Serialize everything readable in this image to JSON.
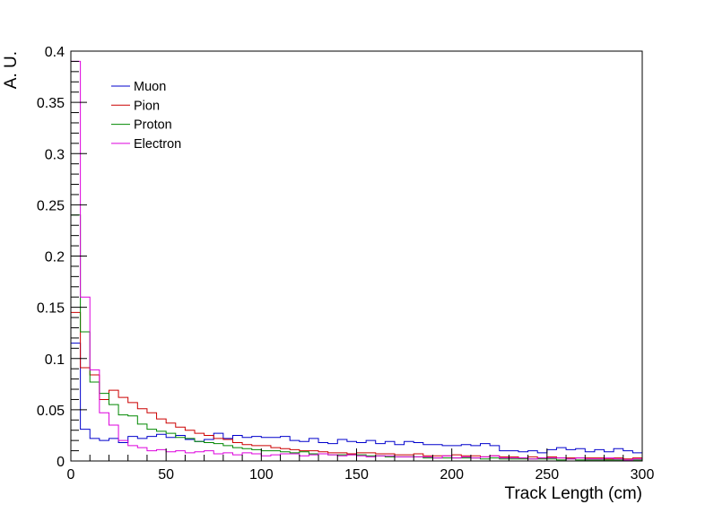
{
  "chart_data": {
    "type": "histogram",
    "xlabel": "Track Length (cm)",
    "ylabel": "A. U.",
    "xlim": [
      0,
      300
    ],
    "ylim": [
      0,
      0.4
    ],
    "bin_width": 5,
    "x_ticks": [
      "0",
      "50",
      "100",
      "150",
      "200",
      "250",
      "300"
    ],
    "y_ticks": [
      "0",
      "0.05",
      "0.1",
      "0.15",
      "0.2",
      "0.25",
      "0.3",
      "0.35",
      "0.4"
    ],
    "legend_position": "top-left",
    "series": [
      {
        "name": "Muon",
        "color": "#0000cc",
        "values": [
          0.115,
          0.031,
          0.022,
          0.02,
          0.022,
          0.018,
          0.024,
          0.022,
          0.024,
          0.026,
          0.023,
          0.025,
          0.021,
          0.019,
          0.021,
          0.027,
          0.022,
          0.025,
          0.023,
          0.024,
          0.023,
          0.023,
          0.024,
          0.02,
          0.019,
          0.022,
          0.018,
          0.017,
          0.021,
          0.019,
          0.018,
          0.02,
          0.017,
          0.019,
          0.016,
          0.019,
          0.018,
          0.016,
          0.016,
          0.015,
          0.015,
          0.016,
          0.015,
          0.017,
          0.015,
          0.01,
          0.01,
          0.009,
          0.01,
          0.008,
          0.011,
          0.013,
          0.011,
          0.012,
          0.009,
          0.011,
          0.009,
          0.012,
          0.01,
          0.008
        ]
      },
      {
        "name": "Pion",
        "color": "#cc0000",
        "values": [
          0.145,
          0.091,
          0.084,
          0.06,
          0.069,
          0.062,
          0.057,
          0.051,
          0.047,
          0.041,
          0.037,
          0.033,
          0.03,
          0.027,
          0.025,
          0.022,
          0.021,
          0.018,
          0.016,
          0.015,
          0.015,
          0.013,
          0.012,
          0.011,
          0.01,
          0.01,
          0.009,
          0.008,
          0.008,
          0.007,
          0.008,
          0.008,
          0.007,
          0.007,
          0.006,
          0.006,
          0.007,
          0.005,
          0.005,
          0.005,
          0.006,
          0.005,
          0.005,
          0.004,
          0.005,
          0.004,
          0.004,
          0.003,
          0.004,
          0.003,
          0.004,
          0.003,
          0.003,
          0.003,
          0.003,
          0.003,
          0.002,
          0.003,
          0.002,
          0.003
        ]
      },
      {
        "name": "Proton",
        "color": "#008800",
        "values": [
          0.24,
          0.126,
          0.077,
          0.066,
          0.055,
          0.045,
          0.044,
          0.036,
          0.031,
          0.029,
          0.027,
          0.023,
          0.022,
          0.019,
          0.018,
          0.017,
          0.015,
          0.013,
          0.012,
          0.011,
          0.01,
          0.01,
          0.009,
          0.008,
          0.009,
          0.007,
          0.007,
          0.006,
          0.006,
          0.006,
          0.006,
          0.005,
          0.005,
          0.004,
          0.004,
          0.004,
          0.004,
          0.003,
          0.003,
          0.003,
          0.003,
          0.003,
          0.003,
          0.002,
          0.003,
          0.002,
          0.002,
          0.002,
          0.002,
          0.002,
          0.002,
          0.001,
          0.002,
          0.001,
          0.001,
          0.001,
          0.001,
          0.001,
          0.001,
          0.001
        ]
      },
      {
        "name": "Electron",
        "color": "#dd00dd",
        "values": [
          0.39,
          0.16,
          0.089,
          0.047,
          0.035,
          0.02,
          0.015,
          0.013,
          0.01,
          0.011,
          0.009,
          0.01,
          0.008,
          0.009,
          0.01,
          0.007,
          0.008,
          0.006,
          0.008,
          0.007,
          0.005,
          0.006,
          0.007,
          0.007,
          0.005,
          0.006,
          0.007,
          0.006,
          0.005,
          0.006,
          0.005,
          0.004,
          0.005,
          0.005,
          0.004,
          0.004,
          0.004,
          0.004,
          0.003,
          0.005,
          0.003,
          0.004,
          0.003,
          0.004,
          0.005,
          0.003,
          0.003,
          0.003,
          0.002,
          0.003,
          0.003,
          0.003,
          0.002,
          0.003,
          0.002,
          0.002,
          0.003,
          0.002,
          0.001,
          0.002
        ]
      }
    ]
  }
}
